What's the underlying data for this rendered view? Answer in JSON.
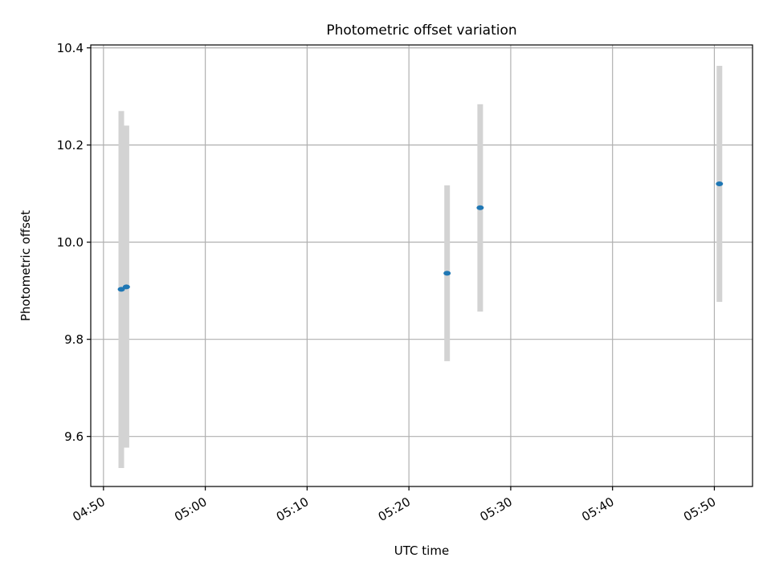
{
  "chart_data": {
    "type": "scatter",
    "title": "Photometric offset variation",
    "xlabel": "UTC time",
    "ylabel": "Photometric offset",
    "x_is_time": true,
    "xlim": [
      "04:48:45",
      "05:53:45"
    ],
    "ylim": [
      9.497,
      10.406
    ],
    "x_ticks": [
      "04:50",
      "05:00",
      "05:10",
      "05:20",
      "05:30",
      "05:40",
      "05:50"
    ],
    "y_ticks": [
      9.6,
      9.8,
      10.0,
      10.2,
      10.4
    ],
    "y_tick_labels": [
      "9.6",
      "9.8",
      "10.0",
      "10.2",
      "10.4"
    ],
    "grid": true,
    "points": [
      {
        "x": "04:51:45",
        "y": 9.903,
        "yerr_low": 9.535,
        "yerr_high": 10.27
      },
      {
        "x": "04:52:15",
        "y": 9.908,
        "yerr_low": 9.577,
        "yerr_high": 10.24
      },
      {
        "x": "05:23:45",
        "y": 9.936,
        "yerr_low": 9.755,
        "yerr_high": 10.117
      },
      {
        "x": "05:27:00",
        "y": 10.071,
        "yerr_low": 9.857,
        "yerr_high": 10.284
      },
      {
        "x": "05:50:30",
        "y": 10.12,
        "yerr_low": 9.877,
        "yerr_high": 10.363
      }
    ],
    "marker_color": "#1f77b4",
    "errorbar_color": "#d3d3d3",
    "grid_color": "#b0b0b0"
  }
}
